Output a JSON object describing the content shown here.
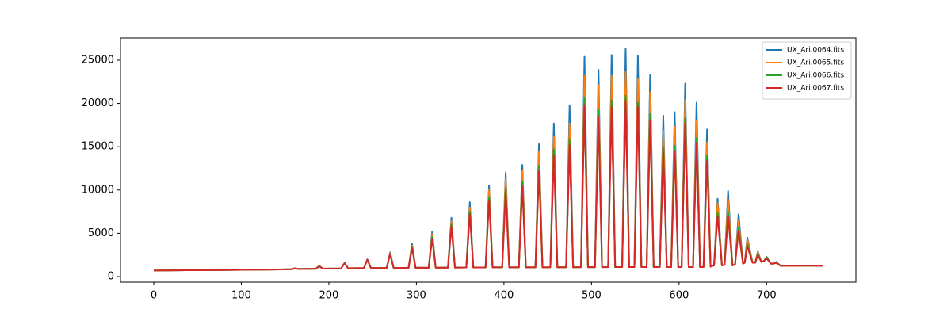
{
  "chart_data": {
    "type": "line",
    "x": [
      0,
      25,
      50,
      75,
      100,
      125,
      145,
      157,
      161,
      166,
      185,
      189,
      193,
      214,
      218,
      222,
      240,
      244,
      248,
      266,
      270,
      274,
      291,
      295,
      299,
      314,
      318,
      322,
      336,
      340,
      344,
      357,
      361,
      365,
      379,
      383,
      387,
      398,
      402,
      406,
      417,
      421,
      425,
      436,
      440,
      444,
      453,
      457,
      461,
      471,
      475,
      479,
      488,
      492,
      496,
      504,
      508,
      512,
      519,
      523,
      527,
      535,
      539,
      543,
      549,
      553,
      557,
      563,
      567,
      571,
      578,
      582,
      586,
      591,
      595,
      599,
      603,
      607,
      611,
      616,
      620,
      624,
      628,
      632,
      636,
      640,
      644,
      649,
      652,
      656,
      661,
      664,
      668,
      673,
      675,
      678,
      684,
      687,
      690,
      694,
      697,
      700,
      705,
      708,
      711,
      716,
      730,
      745,
      764
    ],
    "series": [
      {
        "name": "UX_Ari.0064.fits",
        "color": "#1f77b4",
        "values": [
          700,
          720,
          740,
          760,
          780,
          800,
          820,
          850,
          950,
          880,
          900,
          1250,
          920,
          940,
          1600,
          960,
          980,
          2000,
          990,
          1000,
          2800,
          1000,
          1000,
          3800,
          1020,
          1020,
          5200,
          1030,
          1030,
          6800,
          1040,
          1050,
          8600,
          1050,
          1050,
          10500,
          1060,
          1060,
          12000,
          1060,
          1060,
          12900,
          1070,
          1070,
          15300,
          1070,
          1080,
          17700,
          1080,
          1080,
          19800,
          1080,
          1090,
          25400,
          1090,
          1090,
          23900,
          1090,
          1100,
          25600,
          1100,
          1100,
          26300,
          1100,
          1100,
          25500,
          1100,
          1100,
          23300,
          1100,
          1100,
          18600,
          1100,
          1100,
          19000,
          1100,
          1100,
          22300,
          1100,
          1100,
          20100,
          1100,
          1100,
          17000,
          1150,
          1300,
          9000,
          1300,
          1350,
          9900,
          1300,
          1400,
          7200,
          1500,
          1600,
          4500,
          1600,
          1600,
          2900,
          1700,
          1800,
          2300,
          1500,
          1500,
          1700,
          1250,
          1250,
          1260,
          1250
        ]
      },
      {
        "name": "UX_Ari.0065.fits",
        "color": "#ff7f0e",
        "values": [
          700,
          720,
          740,
          760,
          780,
          800,
          820,
          850,
          950,
          880,
          900,
          1230,
          920,
          940,
          1580,
          960,
          980,
          1980,
          990,
          1000,
          2700,
          1000,
          1000,
          3600,
          1020,
          1020,
          4900,
          1030,
          1030,
          6400,
          1040,
          1050,
          8000,
          1050,
          1050,
          10000,
          1060,
          1060,
          11400,
          1060,
          1060,
          12300,
          1070,
          1070,
          14400,
          1070,
          1080,
          16200,
          1080,
          1080,
          17700,
          1080,
          1090,
          23200,
          1090,
          1090,
          22100,
          1090,
          1100,
          23200,
          1100,
          1100,
          23700,
          1100,
          1100,
          22800,
          1100,
          1100,
          21300,
          1100,
          1100,
          16900,
          1100,
          1100,
          17300,
          1100,
          1100,
          20400,
          1100,
          1100,
          18000,
          1100,
          1100,
          15500,
          1150,
          1300,
          8500,
          1300,
          1350,
          8900,
          1300,
          1400,
          6500,
          1500,
          1600,
          4300,
          1600,
          1600,
          2800,
          1700,
          1800,
          2250,
          1500,
          1500,
          1650,
          1250,
          1250,
          1260,
          1250
        ]
      },
      {
        "name": "UX_Ari.0066.fits",
        "color": "#2ca02c",
        "values": [
          700,
          720,
          740,
          760,
          780,
          800,
          820,
          850,
          950,
          880,
          900,
          1220,
          920,
          940,
          1560,
          960,
          980,
          1950,
          990,
          1000,
          2600,
          1000,
          1000,
          3400,
          1020,
          1020,
          4600,
          1030,
          1030,
          6000,
          1040,
          1050,
          7500,
          1050,
          1050,
          9200,
          1060,
          1060,
          10200,
          1060,
          1060,
          11000,
          1070,
          1070,
          12800,
          1070,
          1080,
          14700,
          1080,
          1080,
          15900,
          1080,
          1090,
          20600,
          1090,
          1090,
          19200,
          1090,
          1100,
          20400,
          1100,
          1100,
          20900,
          1100,
          1100,
          20100,
          1100,
          1100,
          18800,
          1100,
          1100,
          15000,
          1100,
          1100,
          15100,
          1100,
          1100,
          18300,
          1100,
          1100,
          16000,
          1100,
          1100,
          14000,
          1150,
          1300,
          7400,
          1300,
          1350,
          7500,
          1300,
          1400,
          5700,
          1500,
          1600,
          3800,
          1600,
          1600,
          2600,
          1700,
          1800,
          2200,
          1500,
          1500,
          1600,
          1250,
          1250,
          1260,
          1250
        ]
      },
      {
        "name": "UX_Ari.0067.fits",
        "color": "#d62728",
        "values": [
          700,
          720,
          740,
          760,
          780,
          800,
          820,
          850,
          950,
          880,
          900,
          1200,
          920,
          940,
          1550,
          960,
          980,
          1950,
          990,
          1000,
          2600,
          1000,
          1000,
          3300,
          1020,
          1020,
          4400,
          1030,
          1030,
          5800,
          1040,
          1050,
          7200,
          1050,
          1050,
          8800,
          1060,
          1060,
          9600,
          1060,
          1060,
          10400,
          1070,
          1070,
          12200,
          1070,
          1080,
          14000,
          1080,
          1080,
          15200,
          1080,
          1090,
          19700,
          1090,
          1090,
          18400,
          1090,
          1100,
          19600,
          1100,
          1100,
          20300,
          1100,
          1100,
          19600,
          1100,
          1100,
          18000,
          1100,
          1100,
          14400,
          1100,
          1100,
          14500,
          1100,
          1100,
          17700,
          1100,
          1100,
          15400,
          1100,
          1100,
          13400,
          1150,
          1300,
          7000,
          1300,
          1350,
          7000,
          1300,
          1400,
          5300,
          1500,
          1600,
          3500,
          1600,
          1600,
          2500,
          1700,
          1800,
          2100,
          1500,
          1500,
          1600,
          1250,
          1250,
          1260,
          1250
        ]
      }
    ],
    "xlim": [
      -38,
      802
    ],
    "xticks": [
      0,
      100,
      200,
      300,
      400,
      500,
      600,
      700
    ],
    "ylim": [
      -640,
      27560
    ],
    "yticks": [
      0,
      5000,
      10000,
      15000,
      20000,
      25000
    ],
    "legend": "upper right"
  }
}
